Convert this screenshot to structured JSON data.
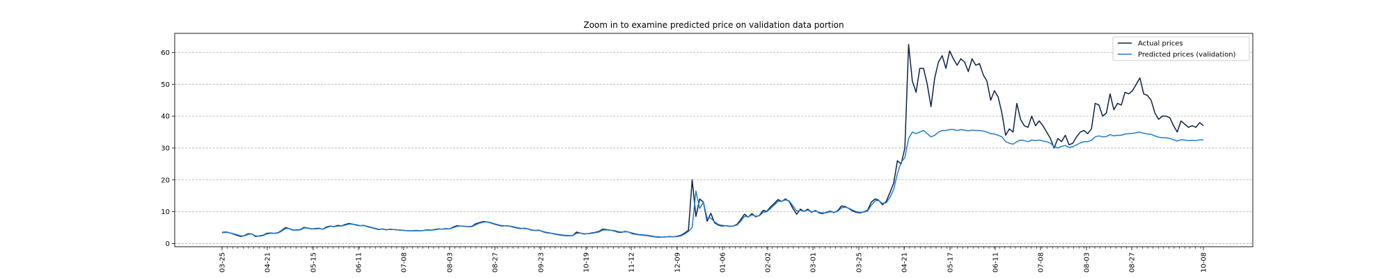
{
  "chart_data": {
    "type": "line",
    "title": "Zoom in to examine predicted price on validation data portion",
    "xlabel": "",
    "ylabel": "",
    "ylim": [
      -1,
      66
    ],
    "yticks": [
      0,
      10,
      20,
      30,
      40,
      50,
      60
    ],
    "grid": "horizontal dashed",
    "legend_position": "top-right",
    "xtick_labels": [
      "03-25",
      "04-21",
      "05-15",
      "06-11",
      "07-08",
      "08-03",
      "08-27",
      "09-23",
      "10-19",
      "11-12",
      "12-09",
      "01-06",
      "02-02",
      "03-01",
      "03-25",
      "04-21",
      "05-17",
      "06-11",
      "07-08",
      "08-03",
      "08-27",
      "10-08"
    ],
    "series": [
      {
        "name": "Actual prices",
        "color": "#0b1f48",
        "values": [
          3.5,
          3.6,
          3.4,
          3.0,
          2.6,
          2.2,
          2.5,
          3.1,
          3.0,
          2.2,
          2.4,
          2.6,
          3.2,
          3.3,
          3.2,
          3.4,
          4.1,
          5.0,
          4.7,
          4.2,
          4.3,
          4.4,
          5.1,
          4.8,
          4.6,
          4.7,
          4.8,
          4.5,
          5.2,
          5.5,
          5.3,
          5.7,
          5.5,
          6.0,
          6.3,
          6.1,
          5.8,
          5.6,
          5.7,
          5.3,
          5.0,
          4.7,
          4.4,
          4.6,
          4.3,
          4.5,
          4.4,
          4.3,
          4.2,
          4.1,
          4.0,
          4.0,
          4.1,
          4.0,
          4.1,
          4.3,
          4.2,
          4.4,
          4.6,
          4.5,
          4.7,
          4.6,
          5.2,
          5.6,
          5.5,
          5.4,
          5.3,
          5.4,
          6.2,
          6.6,
          6.9,
          6.8,
          6.5,
          6.1,
          5.8,
          5.5,
          5.6,
          5.5,
          5.2,
          4.9,
          4.7,
          4.8,
          4.6,
          4.2,
          4.1,
          4.2,
          3.7,
          3.4,
          3.3,
          3.0,
          2.8,
          2.6,
          2.5,
          2.4,
          2.5,
          3.6,
          3.3,
          3.0,
          3.1,
          3.3,
          3.5,
          3.8,
          4.5,
          4.4,
          4.2,
          4.0,
          3.6,
          3.5,
          3.8,
          3.6,
          3.1,
          2.9,
          2.7,
          2.6,
          2.5,
          2.3,
          2.1,
          2.0,
          2.0,
          2.1,
          2.2,
          2.1,
          2.3,
          2.6,
          3.3,
          4.2,
          20.0,
          8.5,
          14.0,
          13.0,
          7.0,
          9.5,
          6.5,
          5.8,
          5.5,
          5.6,
          5.4,
          5.5,
          6.0,
          7.5,
          9.2,
          8.3,
          9.4,
          8.4,
          8.8,
          10.4,
          10.1,
          11.5,
          12.6,
          13.8,
          13.2,
          14.0,
          13.2,
          11.0,
          9.2,
          10.8,
          10.1,
          10.8,
          9.8,
          10.4,
          9.6,
          9.4,
          9.8,
          10.2,
          9.7,
          10.3,
          11.8,
          11.6,
          11.0,
          10.2,
          9.8,
          9.6,
          10.0,
          10.4,
          13.0,
          14.0,
          13.6,
          12.2,
          13.2,
          16.0,
          19.0,
          26.0,
          25.0,
          30.0,
          62.5,
          51.0,
          47.5,
          55.0,
          55.0,
          50.0,
          43.0,
          52.0,
          57.0,
          59.0,
          55.0,
          60.5,
          58.0,
          56.0,
          58.0,
          57.0,
          54.0,
          58.0,
          56.0,
          56.5,
          53.0,
          51.0,
          45.0,
          48.0,
          46.0,
          41.0,
          34.0,
          36.0,
          35.0,
          44.0,
          39.0,
          37.0,
          36.5,
          40.0,
          37.0,
          38.5,
          37.0,
          35.0,
          33.0,
          30.0,
          33.0,
          32.0,
          34.0,
          31.0,
          31.5,
          33.5,
          35.0,
          35.5,
          34.5,
          36.0,
          44.0,
          43.5,
          40.0,
          41.0,
          47.0,
          42.0,
          44.0,
          43.5,
          47.5,
          47.0,
          48.0,
          50.0,
          52.0,
          47.0,
          46.5,
          45.0,
          41.0,
          39.0,
          40.0,
          40.0,
          39.5,
          37.0,
          35.0,
          38.5,
          37.5,
          36.5,
          37.0,
          36.5,
          38.0,
          37.0
        ]
      },
      {
        "name": "Predicted prices (validation)",
        "color": "#1f7bd0",
        "values": [
          3.4,
          3.5,
          3.4,
          3.1,
          2.8,
          2.4,
          2.4,
          2.9,
          3.0,
          2.4,
          2.3,
          2.5,
          3.0,
          3.2,
          3.2,
          3.3,
          3.9,
          4.7,
          4.7,
          4.3,
          4.2,
          4.3,
          4.9,
          4.9,
          4.6,
          4.6,
          4.7,
          4.5,
          5.0,
          5.4,
          5.3,
          5.5,
          5.5,
          5.8,
          6.1,
          6.1,
          5.9,
          5.6,
          5.6,
          5.4,
          5.1,
          4.8,
          4.5,
          4.5,
          4.4,
          4.4,
          4.4,
          4.3,
          4.2,
          4.1,
          4.0,
          4.0,
          4.0,
          4.0,
          4.1,
          4.2,
          4.2,
          4.3,
          4.5,
          4.5,
          4.6,
          4.6,
          5.0,
          5.4,
          5.5,
          5.4,
          5.3,
          5.3,
          5.9,
          6.4,
          6.7,
          6.8,
          6.6,
          6.2,
          5.9,
          5.6,
          5.6,
          5.5,
          5.3,
          5.0,
          4.8,
          4.7,
          4.6,
          4.3,
          4.1,
          4.1,
          3.8,
          3.5,
          3.3,
          3.1,
          2.9,
          2.7,
          2.6,
          2.5,
          2.5,
          3.2,
          3.3,
          3.1,
          3.1,
          3.2,
          3.4,
          3.6,
          4.2,
          4.3,
          4.2,
          4.1,
          3.8,
          3.6,
          3.7,
          3.6,
          3.3,
          3.0,
          2.8,
          2.7,
          2.6,
          2.4,
          2.2,
          2.1,
          2.0,
          2.1,
          2.1,
          2.1,
          2.2,
          2.4,
          3.0,
          3.8,
          5.0,
          16.5,
          11.0,
          13.0,
          8.0,
          8.0,
          6.8,
          6.0,
          5.7,
          5.6,
          5.5,
          5.5,
          5.8,
          7.0,
          8.5,
          8.4,
          9.0,
          8.6,
          8.7,
          9.8,
          10.0,
          11.0,
          12.1,
          13.2,
          13.3,
          13.7,
          13.4,
          11.8,
          10.2,
          10.4,
          10.2,
          10.5,
          10.0,
          10.2,
          9.8,
          9.6,
          9.7,
          10.0,
          9.8,
          10.1,
          11.2,
          11.4,
          11.1,
          10.5,
          10.0,
          9.8,
          9.9,
          10.2,
          12.0,
          13.4,
          13.5,
          12.6,
          12.8,
          14.5,
          17.0,
          22.0,
          25.5,
          27.0,
          33.0,
          35.0,
          34.5,
          35.0,
          35.5,
          34.5,
          33.5,
          34.0,
          35.0,
          35.5,
          35.5,
          35.8,
          35.8,
          35.5,
          35.8,
          35.6,
          35.4,
          35.6,
          35.5,
          35.5,
          35.3,
          35.0,
          34.5,
          34.4,
          34.0,
          33.5,
          32.0,
          31.5,
          31.2,
          32.0,
          32.5,
          32.3,
          32.0,
          32.5,
          32.3,
          32.5,
          32.2,
          32.0,
          31.5,
          30.5,
          30.0,
          30.5,
          30.8,
          30.2,
          30.4,
          31.0,
          31.6,
          32.0,
          32.0,
          32.4,
          33.5,
          33.8,
          33.5,
          33.6,
          34.2,
          33.8,
          34.0,
          34.0,
          34.4,
          34.5,
          34.6,
          34.8,
          35.0,
          34.6,
          34.4,
          34.3,
          33.8,
          33.4,
          33.2,
          33.2,
          33.0,
          32.6,
          32.2,
          32.6,
          32.5,
          32.3,
          32.4,
          32.3,
          32.6,
          32.5
        ]
      }
    ]
  }
}
